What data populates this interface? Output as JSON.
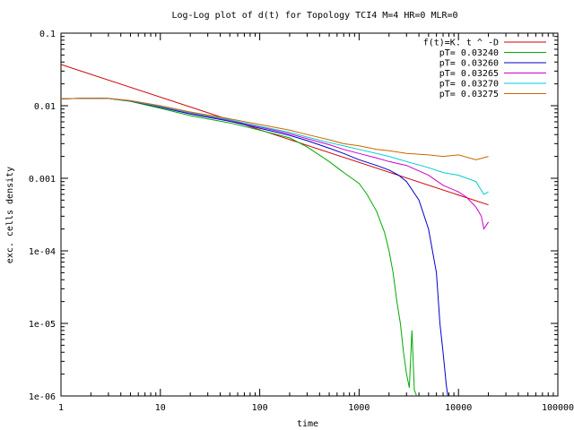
{
  "chart_data": {
    "type": "line",
    "title": "Log-Log plot of d(t) for Topology TCI4 M=4 HR=0 MLR=0",
    "xlabel": "time",
    "ylabel": "exc. cells density",
    "x_scale": "log",
    "y_scale": "log",
    "xlim": [
      1,
      100000
    ],
    "ylim": [
      1e-06,
      0.1
    ],
    "x_ticks": [
      1,
      10,
      100,
      1000,
      10000,
      100000
    ],
    "x_tick_labels": [
      "1",
      "10",
      "100",
      "1000",
      "10000",
      "100000"
    ],
    "y_ticks": [
      1e-06,
      1e-05,
      0.0001,
      0.001,
      0.01,
      0.1
    ],
    "y_tick_labels": [
      "1e-06",
      "1e-05",
      "1e-04",
      "0.001",
      "0.01",
      "0.1"
    ],
    "grid": false,
    "legend_position": "top-right",
    "series": [
      {
        "name": "f(t)=K. t ^ -D",
        "color": "#cc0000",
        "x": [
          1,
          20000
        ],
        "y": [
          0.037,
          0.00043
        ]
      },
      {
        "name": "pT= 0.03240",
        "color": "#00aa00",
        "x": [
          1,
          2,
          3,
          5,
          10,
          20,
          50,
          100,
          200,
          300,
          500,
          700,
          1000,
          1200,
          1500,
          1800,
          2000,
          2200,
          2400,
          2600,
          2800,
          3000,
          3200,
          3400,
          3600,
          3800
        ],
        "y": [
          0.0125,
          0.0127,
          0.0126,
          0.0115,
          0.0092,
          0.0073,
          0.0058,
          0.0046,
          0.0036,
          0.0027,
          0.0017,
          0.0012,
          0.00085,
          0.0006,
          0.00035,
          0.00018,
          0.0001,
          5e-05,
          2e-05,
          1e-05,
          4e-06,
          2e-06,
          1.3e-06,
          8e-06,
          1.2e-06,
          1e-06
        ]
      },
      {
        "name": "pT= 0.03260",
        "color": "#0000cc",
        "x": [
          1,
          2,
          3,
          5,
          10,
          20,
          50,
          100,
          200,
          300,
          500,
          700,
          1000,
          1500,
          2000,
          2500,
          3000,
          4000,
          5000,
          6000,
          6500,
          7000,
          7500,
          7800
        ],
        "y": [
          0.0125,
          0.0127,
          0.0126,
          0.0116,
          0.0095,
          0.0077,
          0.0061,
          0.0049,
          0.0039,
          0.0033,
          0.0026,
          0.0022,
          0.0018,
          0.0015,
          0.0013,
          0.0011,
          0.0009,
          0.0005,
          0.0002,
          5e-05,
          1e-05,
          4e-06,
          1.5e-06,
          1e-06
        ]
      },
      {
        "name": "pT= 0.03265",
        "color": "#cc00cc",
        "x": [
          1,
          2,
          3,
          5,
          10,
          20,
          50,
          100,
          200,
          300,
          500,
          700,
          1000,
          1500,
          2000,
          3000,
          5000,
          7000,
          10000,
          12000,
          15000,
          17000,
          18000,
          20000
        ],
        "y": [
          0.0125,
          0.0127,
          0.0126,
          0.0117,
          0.0097,
          0.0079,
          0.0063,
          0.0051,
          0.0041,
          0.0035,
          0.0029,
          0.0025,
          0.0022,
          0.0019,
          0.0017,
          0.0015,
          0.0011,
          0.0008,
          0.00065,
          0.00055,
          0.0004,
          0.0003,
          0.0002,
          0.00025
        ]
      },
      {
        "name": "pT= 0.03270",
        "color": "#00cccc",
        "x": [
          1,
          2,
          3,
          5,
          10,
          20,
          50,
          100,
          200,
          300,
          500,
          700,
          1000,
          1500,
          2000,
          3000,
          5000,
          7000,
          10000,
          15000,
          18000,
          20000
        ],
        "y": [
          0.0125,
          0.0127,
          0.0126,
          0.0117,
          0.0098,
          0.008,
          0.0064,
          0.0052,
          0.0043,
          0.0037,
          0.0031,
          0.0028,
          0.0025,
          0.0022,
          0.002,
          0.0017,
          0.0014,
          0.0012,
          0.0011,
          0.0009,
          0.0006,
          0.00065
        ]
      },
      {
        "name": "pT= 0.03275",
        "color": "#cc6600",
        "x": [
          1,
          2,
          3,
          5,
          10,
          20,
          50,
          100,
          200,
          300,
          500,
          700,
          1000,
          1500,
          2000,
          3000,
          5000,
          7000,
          10000,
          15000,
          20000
        ],
        "y": [
          0.0125,
          0.0127,
          0.0126,
          0.0118,
          0.01,
          0.0082,
          0.0066,
          0.0055,
          0.0046,
          0.004,
          0.0034,
          0.003,
          0.0028,
          0.0025,
          0.0024,
          0.0022,
          0.0021,
          0.002,
          0.0021,
          0.0018,
          0.002
        ]
      }
    ]
  }
}
